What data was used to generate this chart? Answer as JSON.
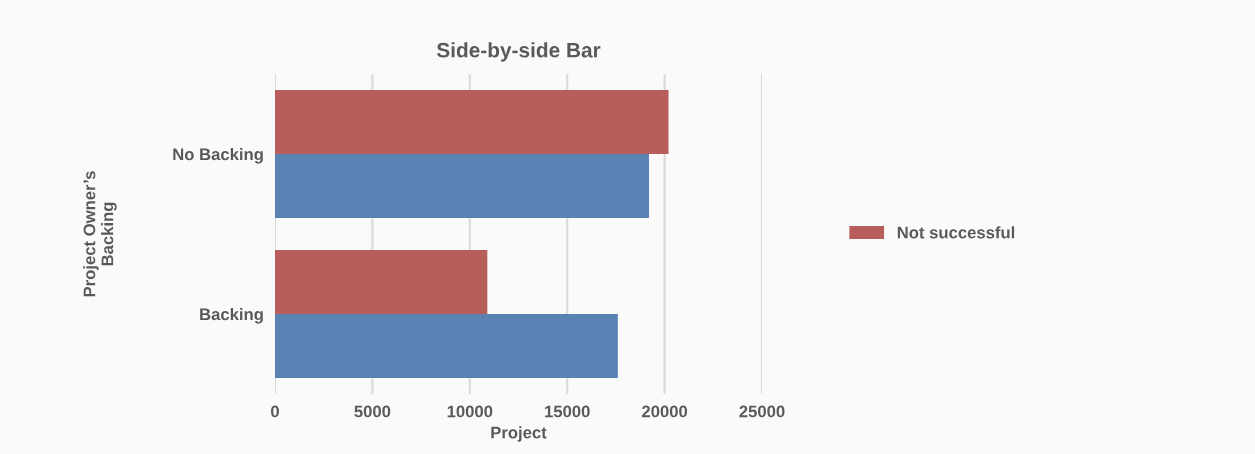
{
  "chart_data": {
    "type": "bar",
    "orientation": "horizontal",
    "title": "Side-by-side Bar",
    "xlabel": "Project",
    "ylabel": "Project Owner’s\nBacking",
    "categories": [
      "No Backing",
      "Backing"
    ],
    "series": [
      {
        "name": "Not successful",
        "color": "#b85e5a",
        "values": [
          20200,
          10900
        ]
      },
      {
        "color": "#5b82b5",
        "values": [
          19200,
          17600
        ]
      }
    ],
    "xlim": [
      0,
      25000
    ],
    "xticks": [
      0,
      5000,
      10000,
      15000,
      20000,
      25000
    ],
    "grid": "x",
    "legend": "right"
  }
}
